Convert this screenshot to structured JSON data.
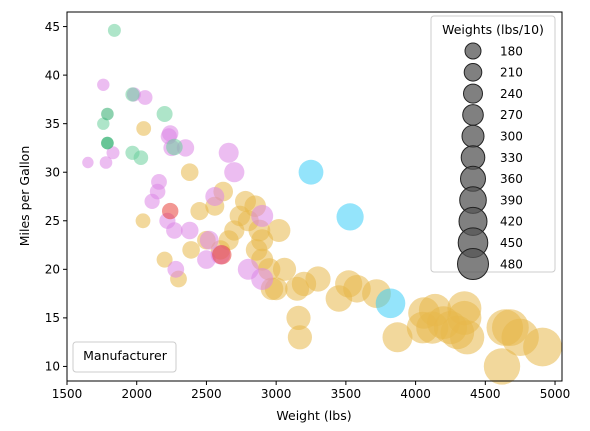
{
  "chart_data": {
    "type": "scatter",
    "xlabel": "Weight (lbs)",
    "ylabel": "Miles per Gallon",
    "xlim": [
      1500,
      5050
    ],
    "ylim": [
      8.5,
      46.5
    ],
    "xticks": [
      1500,
      2000,
      2500,
      3000,
      3500,
      4000,
      4500,
      5000
    ],
    "yticks": [
      10,
      15,
      20,
      25,
      30,
      35,
      40,
      45
    ],
    "grid": false,
    "size_legend": {
      "title": "Weights (lbs/10)",
      "placement": "top-right",
      "entries": [
        "180",
        "210",
        "240",
        "270",
        "300",
        "330",
        "360",
        "390",
        "420",
        "450",
        "480"
      ]
    },
    "color_legend": {
      "title": "Manufacturer",
      "placement": "bottom-left"
    },
    "series": [
      {
        "color": "#e8b84a",
        "points": [
          [
            2050,
            34.5
          ],
          [
            2045,
            25
          ],
          [
            2200,
            21
          ],
          [
            2300,
            19
          ],
          [
            2380,
            30
          ],
          [
            2390,
            22
          ],
          [
            2450,
            26
          ],
          [
            2500,
            23
          ],
          [
            2560,
            26.5
          ],
          [
            2600,
            22
          ],
          [
            2620,
            28
          ],
          [
            2660,
            23
          ],
          [
            2700,
            24
          ],
          [
            2740,
            25.5
          ],
          [
            2780,
            27
          ],
          [
            2800,
            25
          ],
          [
            2850,
            26.5
          ],
          [
            2860,
            22
          ],
          [
            2880,
            24
          ],
          [
            2900,
            21
          ],
          [
            2900,
            23
          ],
          [
            2950,
            20
          ],
          [
            2970,
            18
          ],
          [
            3000,
            18
          ],
          [
            3020,
            24
          ],
          [
            3060,
            20
          ],
          [
            3150,
            18
          ],
          [
            3160,
            15
          ],
          [
            3170,
            13
          ],
          [
            3200,
            18.5
          ],
          [
            3300,
            19
          ],
          [
            3450,
            17
          ],
          [
            3520,
            18.5
          ],
          [
            3580,
            18
          ],
          [
            3720,
            17.5
          ],
          [
            3870,
            13
          ],
          [
            4050,
            14
          ],
          [
            4060,
            15.5
          ],
          [
            4120,
            14
          ],
          [
            4140,
            15.8
          ],
          [
            4200,
            14.5
          ],
          [
            4250,
            14
          ],
          [
            4300,
            13.5
          ],
          [
            4350,
            16
          ],
          [
            4350,
            15
          ],
          [
            4370,
            13
          ],
          [
            4620,
            10
          ],
          [
            4640,
            14
          ],
          [
            4680,
            14
          ],
          [
            4750,
            13
          ],
          [
            4910,
            12
          ]
        ]
      },
      {
        "color": "#dd86e6",
        "points": [
          [
            1650,
            31
          ],
          [
            1760,
            39
          ],
          [
            1780,
            31
          ],
          [
            1830,
            32
          ],
          [
            1980,
            38
          ],
          [
            2060,
            37.7
          ],
          [
            2110,
            27
          ],
          [
            2150,
            28
          ],
          [
            2160,
            29
          ],
          [
            2220,
            25
          ],
          [
            2230,
            33.7
          ],
          [
            2240,
            34
          ],
          [
            2250,
            32.5
          ],
          [
            2270,
            24
          ],
          [
            2280,
            20
          ],
          [
            2350,
            32.5
          ],
          [
            2380,
            24
          ],
          [
            2500,
            21
          ],
          [
            2520,
            23
          ],
          [
            2560,
            27.5
          ],
          [
            2600,
            21.5
          ],
          [
            2660,
            32
          ],
          [
            2700,
            30
          ],
          [
            2800,
            20
          ],
          [
            2900,
            19
          ],
          [
            2900,
            25.5
          ]
        ]
      },
      {
        "color": "#e8413a",
        "points": [
          [
            2240,
            26
          ],
          [
            2610,
            21.5
          ]
        ]
      },
      {
        "color": "#6ccf9c",
        "points": [
          [
            1840,
            44.6
          ],
          [
            1760,
            35
          ],
          [
            1790,
            33
          ],
          [
            1970,
            32
          ],
          [
            2030,
            31.5
          ],
          [
            2200,
            36
          ],
          [
            2270,
            32.6
          ],
          [
            1970,
            38
          ]
        ]
      },
      {
        "color": "#2eac6c",
        "points": [
          [
            1790,
            36
          ],
          [
            1790,
            33
          ]
        ]
      },
      {
        "color": "#3ccdf7",
        "points": [
          [
            3250,
            30
          ],
          [
            3530,
            25.4
          ],
          [
            3820,
            16.5
          ]
        ]
      }
    ]
  }
}
